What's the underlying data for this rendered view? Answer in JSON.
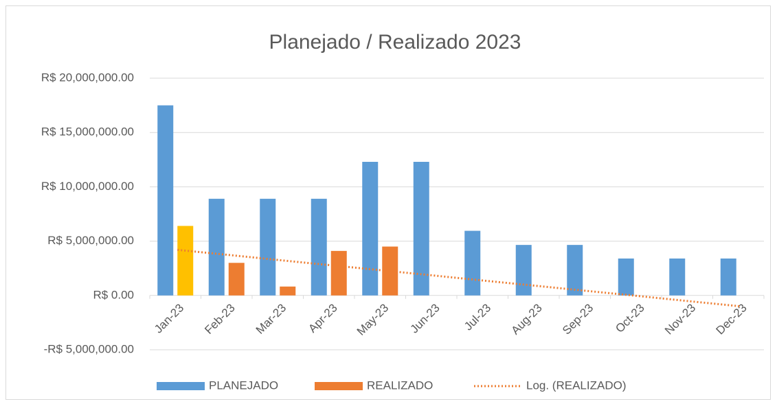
{
  "chart_data": {
    "type": "bar",
    "title": "Planejado / Realizado 2023",
    "categories": [
      "Jan-23",
      "Feb-23",
      "Mar-23",
      "Apr-23",
      "May-23",
      "Jun-23",
      "Jul-23",
      "Aug-23",
      "Sep-23",
      "Oct-23",
      "Nov-23",
      "Dec-23"
    ],
    "series": [
      {
        "name": "PLANEJADO",
        "color": "#5B9BD5",
        "values": [
          17500000,
          8900000,
          8900000,
          8900000,
          12300000,
          12300000,
          5950000,
          4650000,
          4650000,
          3400000,
          3400000,
          3400000
        ]
      },
      {
        "name": "REALIZADO",
        "color": "#ED7D31",
        "highlight": {
          "index": 0,
          "color": "#FFC000"
        },
        "values": [
          6400000,
          3000000,
          820000,
          4100000,
          4500000,
          null,
          null,
          null,
          null,
          null,
          null,
          null
        ]
      },
      {
        "name": "Log. (REALIZADO)",
        "type": "trendline",
        "color": "#ED7D31",
        "values": [
          4200000,
          3730000,
          3250000,
          2780000,
          2310000,
          1840000,
          1360000,
          890000,
          420000,
          -50000,
          -530000,
          -1000000
        ]
      }
    ],
    "ylim": [
      -5000000,
      20000000
    ],
    "yticks": [
      {
        "value": -5000000,
        "label": "-R$ 5,000,000.00"
      },
      {
        "value": 0,
        "label": "R$ 0.00"
      },
      {
        "value": 5000000,
        "label": "R$ 5,000,000.00"
      },
      {
        "value": 10000000,
        "label": "R$ 10,000,000.00"
      },
      {
        "value": 15000000,
        "label": "R$ 15,000,000.00"
      },
      {
        "value": 20000000,
        "label": "R$ 20,000,000.00"
      }
    ],
    "grid": true,
    "legend": "bottom"
  }
}
